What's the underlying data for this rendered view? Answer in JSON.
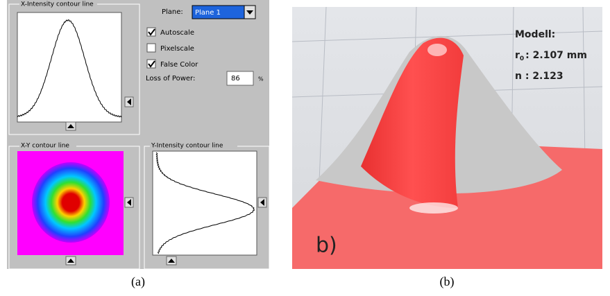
{
  "panel_a": {
    "x_intensity_title": "X-Intensity contour line",
    "plane_label": "Plane:",
    "plane_value": "Plane 1",
    "options": [
      {
        "label": "Autoscale",
        "checked": true
      },
      {
        "label": "Pixelscale",
        "checked": false
      },
      {
        "label": "False Color",
        "checked": true
      }
    ],
    "loss_label": "Loss of Power:",
    "loss_value": "86",
    "loss_unit": "%",
    "xy_title": "X-Y contour line",
    "y_intensity_title": "Y-Intensity contour line"
  },
  "panel_b": {
    "model_label": "Modell:",
    "radius_symbol": "r",
    "radius_subscript": "0",
    "radius_text": ": 2.107 mm",
    "n_text": "n : 2.123",
    "tag": "b)"
  },
  "captions": [
    "(a)",
    "(b)"
  ]
}
